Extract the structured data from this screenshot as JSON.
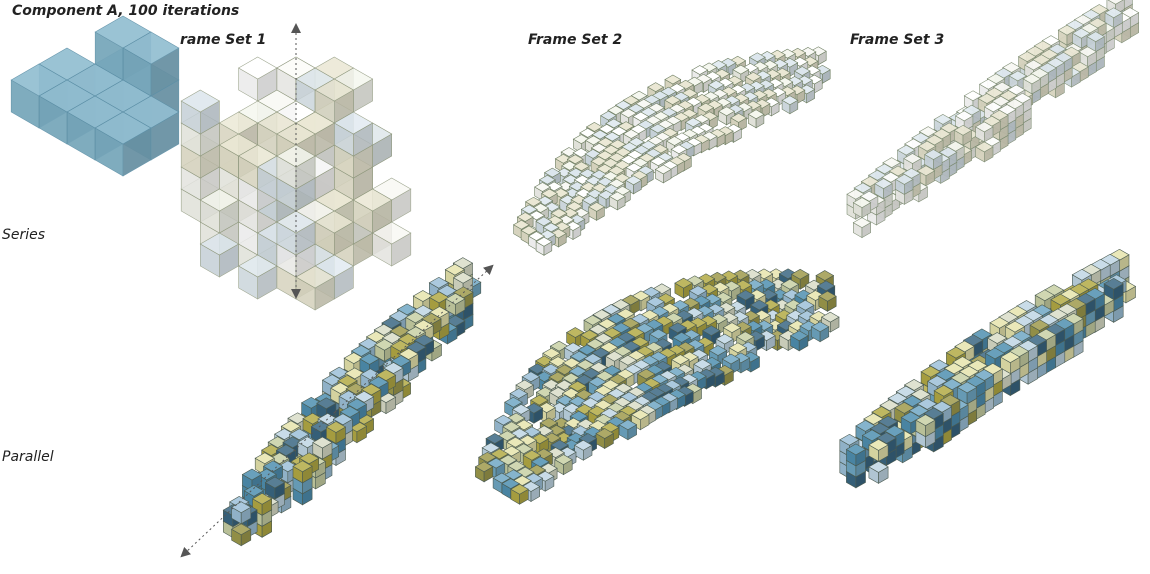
{
  "header": {
    "component": "Component A, 100 iterations"
  },
  "columns": [
    "rame Set 1",
    "Frame Set 2",
    "Frame Set 3"
  ],
  "rows": [
    "Series",
    "Parallel"
  ]
}
